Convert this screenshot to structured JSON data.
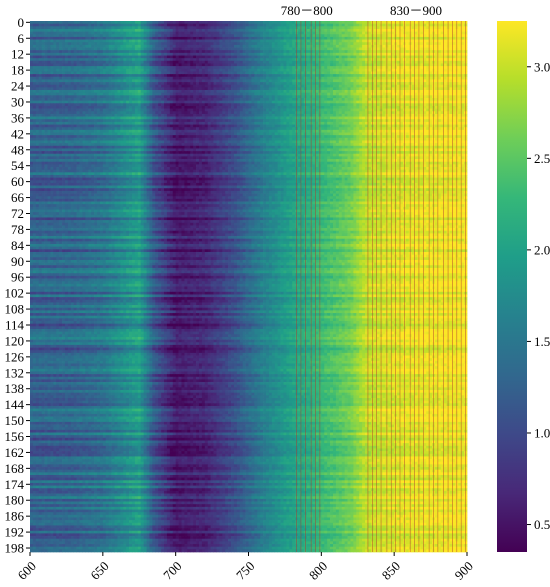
{
  "chart_data": {
    "type": "heatmap",
    "x": {
      "range": [
        600,
        900
      ],
      "ticks": [
        600,
        650,
        700,
        750,
        800,
        850,
        900
      ],
      "tick_labels": [
        "600",
        "650",
        "700",
        "750",
        "800",
        "850",
        "900"
      ]
    },
    "y": {
      "range": [
        0,
        199
      ],
      "ticks": [
        0,
        6,
        12,
        18,
        24,
        30,
        36,
        42,
        48,
        54,
        60,
        66,
        72,
        78,
        84,
        90,
        96,
        102,
        108,
        114,
        120,
        126,
        132,
        138,
        144,
        150,
        156,
        162,
        168,
        174,
        180,
        186,
        192,
        198
      ],
      "tick_labels": [
        "0",
        "6",
        "12",
        "18",
        "24",
        "30",
        "36",
        "42",
        "48",
        "54",
        "60",
        "66",
        "72",
        "78",
        "84",
        "90",
        "96",
        "102",
        "108",
        "114",
        "120",
        "126",
        "132",
        "138",
        "144",
        "150",
        "156",
        "162",
        "168",
        "174",
        "180",
        "186",
        "192",
        "198"
      ]
    },
    "colorbar": {
      "colormap": "viridis",
      "range": [
        0.35,
        3.25
      ],
      "ticks": [
        0.5,
        1.0,
        1.5,
        2.0,
        2.5,
        3.0
      ],
      "tick_labels": [
        "0.5",
        "1.0",
        "1.5",
        "2.0",
        "2.5",
        "3.0"
      ]
    },
    "value_profile": [
      {
        "x": 600,
        "value": 1.25
      },
      {
        "x": 630,
        "value": 1.3
      },
      {
        "x": 650,
        "value": 1.45
      },
      {
        "x": 665,
        "value": 1.75
      },
      {
        "x": 675,
        "value": 1.95
      },
      {
        "x": 685,
        "value": 1.15
      },
      {
        "x": 700,
        "value": 0.55
      },
      {
        "x": 720,
        "value": 0.65
      },
      {
        "x": 740,
        "value": 1.05
      },
      {
        "x": 760,
        "value": 1.6
      },
      {
        "x": 780,
        "value": 2.0
      },
      {
        "x": 800,
        "value": 2.3
      },
      {
        "x": 820,
        "value": 2.6
      },
      {
        "x": 830,
        "value": 2.95
      },
      {
        "x": 850,
        "value": 3.1
      },
      {
        "x": 870,
        "value": 3.15
      },
      {
        "x": 900,
        "value": 3.2
      }
    ],
    "annotations": [
      {
        "label": "780－800",
        "x_range": [
          780,
          800
        ],
        "line_color": "#b03a2e"
      },
      {
        "label": "830－900",
        "x_range": [
          830,
          900
        ],
        "line_color": "#b03a2e"
      }
    ],
    "marked_wavelengths": [
      783,
      786,
      789,
      793,
      796,
      799,
      832,
      835,
      838,
      841,
      845,
      848,
      851,
      854,
      857,
      861,
      864,
      867,
      870,
      874,
      877,
      880,
      884,
      887,
      890,
      893,
      896,
      899
    ]
  }
}
